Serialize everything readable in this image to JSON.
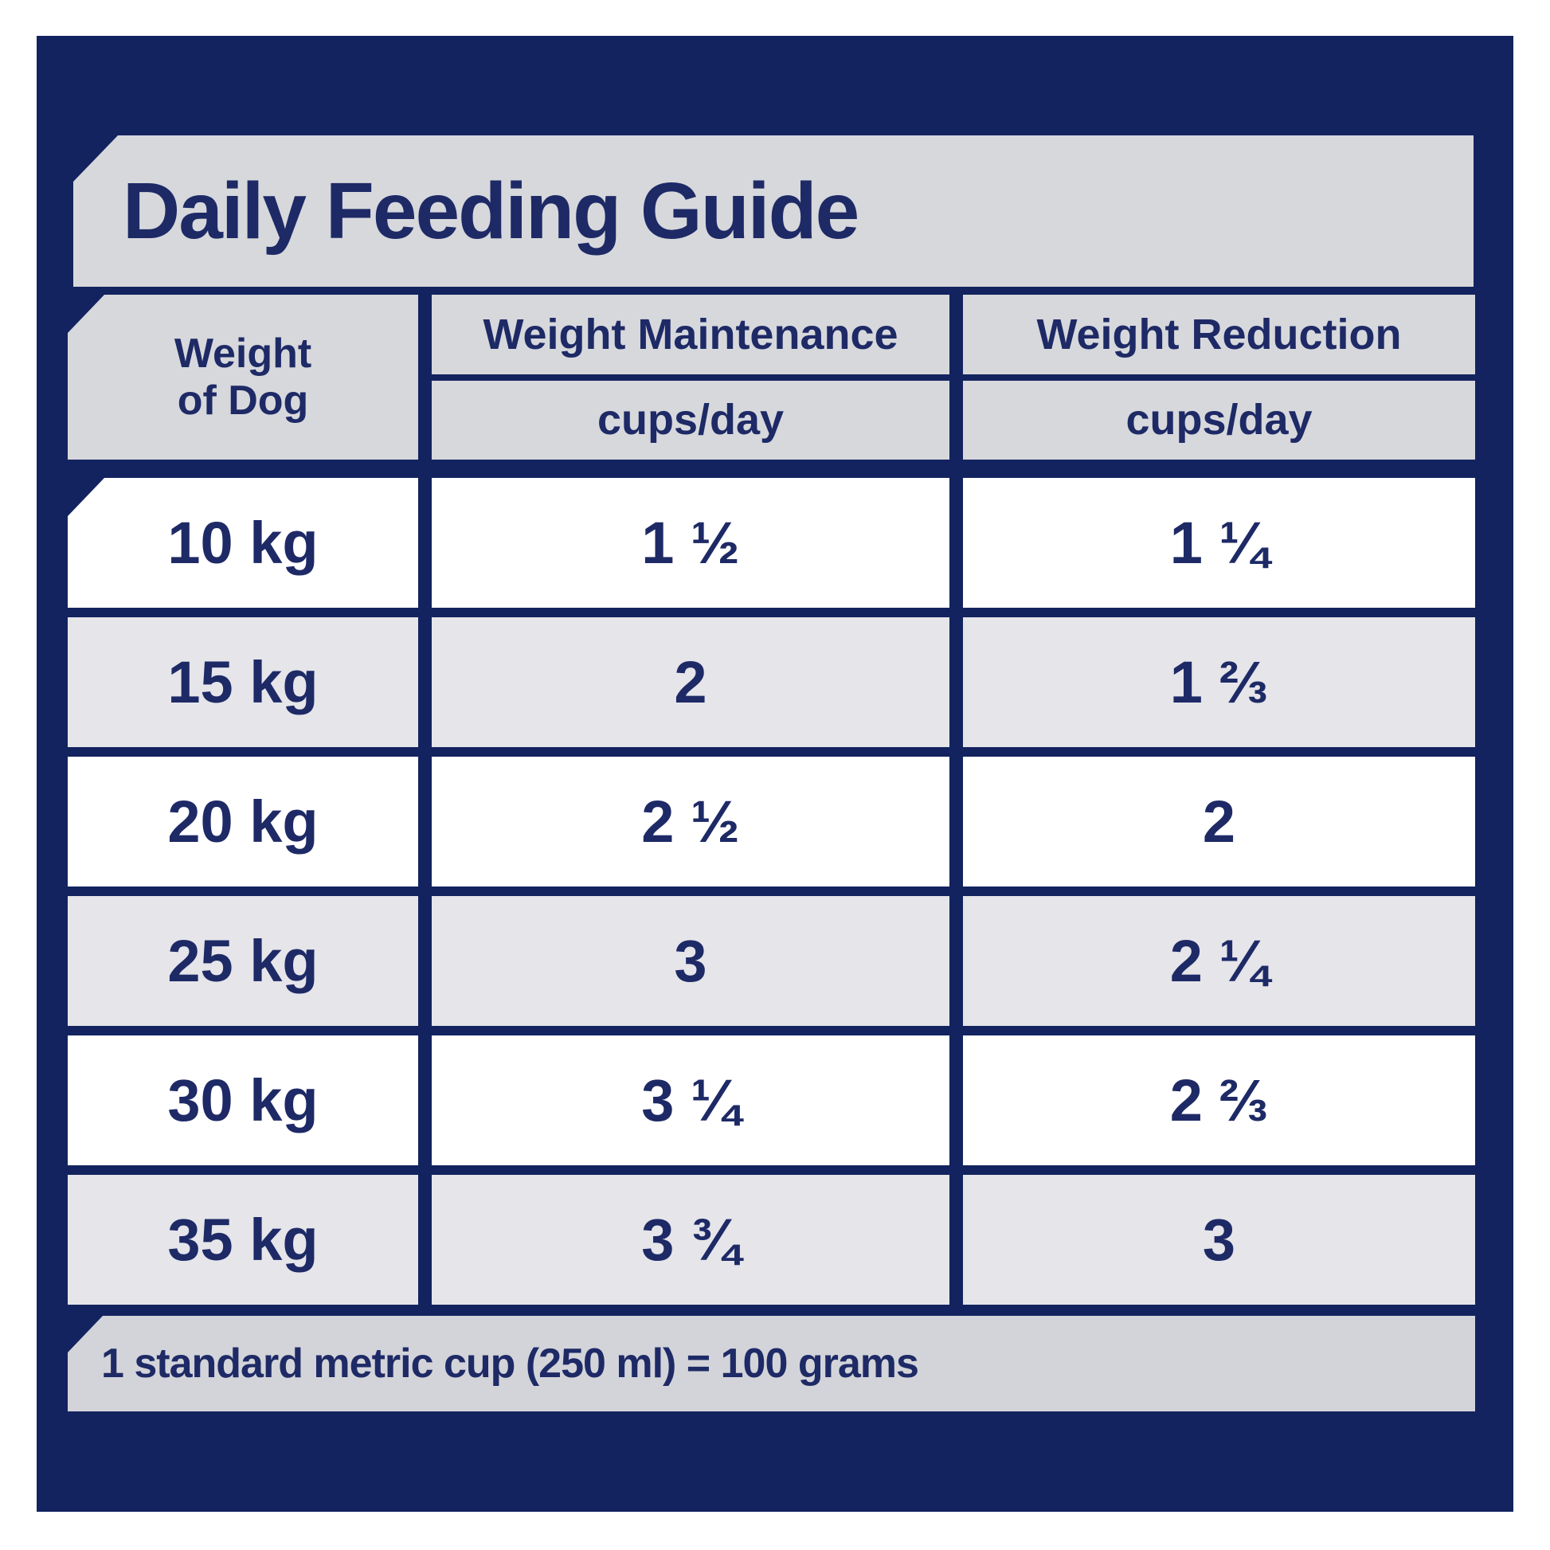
{
  "title": "Daily Feeding Guide",
  "chart_data": {
    "type": "table",
    "title": "Daily Feeding Guide",
    "columns": [
      "Weight of Dog",
      "Weight Maintenance (cups/day)",
      "Weight Reduction (cups/day)"
    ],
    "header": {
      "weight_line1": "Weight",
      "weight_line2": "of Dog",
      "maintenance_label": "Weight Maintenance",
      "reduction_label": "Weight Reduction",
      "unit": "cups/day"
    },
    "rows": [
      {
        "weight": "10 kg",
        "maintenance": "1 ½",
        "reduction": "1 ¼"
      },
      {
        "weight": "15 kg",
        "maintenance": "2",
        "reduction": "1 ⅔"
      },
      {
        "weight": "20 kg",
        "maintenance": "2 ½",
        "reduction": "2"
      },
      {
        "weight": "25 kg",
        "maintenance": "3",
        "reduction": "2 ¼"
      },
      {
        "weight": "30 kg",
        "maintenance": "3 ¼",
        "reduction": "2 ⅔"
      },
      {
        "weight": "35 kg",
        "maintenance": "3 ¾",
        "reduction": "3"
      }
    ],
    "footnote": "1 standard metric cup (250 ml) = 100 grams"
  },
  "colors": {
    "panel_navy": "#13235f",
    "text_navy": "#1e2a66",
    "bar_gray": "#d7d8dc",
    "alt_row_gray": "#e5e5ea",
    "row_white": "#ffffff",
    "page_background": "#ffffff"
  }
}
